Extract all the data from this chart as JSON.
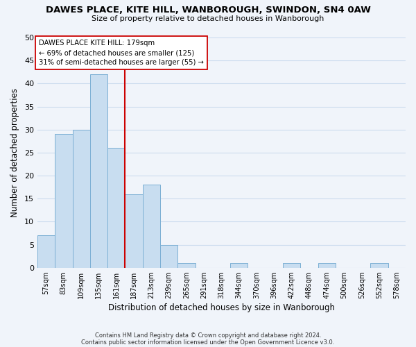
{
  "title": "DAWES PLACE, KITE HILL, WANBOROUGH, SWINDON, SN4 0AW",
  "subtitle": "Size of property relative to detached houses in Wanborough",
  "xlabel": "Distribution of detached houses by size in Wanborough",
  "ylabel": "Number of detached properties",
  "footer_lines": [
    "Contains HM Land Registry data © Crown copyright and database right 2024.",
    "Contains public sector information licensed under the Open Government Licence v3.0."
  ],
  "bin_labels": [
    "57sqm",
    "83sqm",
    "109sqm",
    "135sqm",
    "161sqm",
    "187sqm",
    "213sqm",
    "239sqm",
    "265sqm",
    "291sqm",
    "318sqm",
    "344sqm",
    "370sqm",
    "396sqm",
    "422sqm",
    "448sqm",
    "474sqm",
    "500sqm",
    "526sqm",
    "552sqm",
    "578sqm"
  ],
  "bar_heights": [
    7,
    29,
    30,
    42,
    26,
    16,
    18,
    5,
    1,
    0,
    0,
    1,
    0,
    0,
    1,
    0,
    1,
    0,
    0,
    1,
    0
  ],
  "bar_color": "#c8ddf0",
  "bar_edge_color": "#7bafd4",
  "grid_color": "#ccdcee",
  "vline_x_index": 4.5,
  "vline_color": "#cc0000",
  "annotation_line1": "DAWES PLACE KITE HILL: 179sqm",
  "annotation_line2": "← 69% of detached houses are smaller (125)",
  "annotation_line3": "31% of semi-detached houses are larger (55) →",
  "annotation_box_edgecolor": "#cc0000",
  "annotation_box_facecolor": "white",
  "ylim": [
    0,
    50
  ],
  "yticks": [
    0,
    5,
    10,
    15,
    20,
    25,
    30,
    35,
    40,
    45,
    50
  ],
  "background_color": "#f0f4fa"
}
